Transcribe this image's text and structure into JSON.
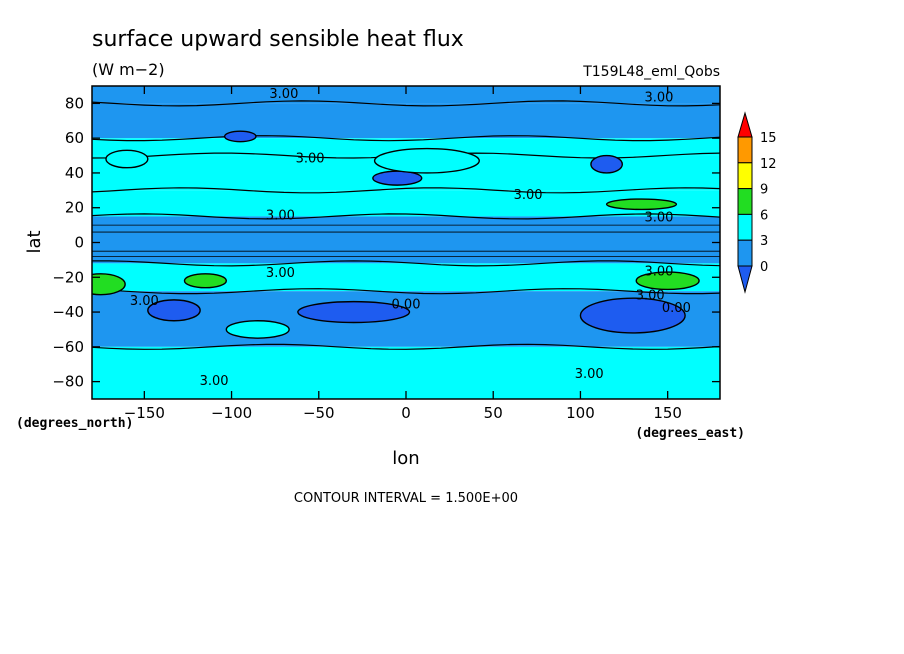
{
  "chart_data": {
    "type": "heatmap",
    "title": "surface upward sensible heat flux",
    "subtitle": "(W m−2)",
    "run_label": "T159L48_eml_Qobs",
    "xlabel": "lon",
    "ylabel": "lat",
    "x_units": "(degrees_east)",
    "y_units": "(degrees_north)",
    "xlim": [
      -180,
      180
    ],
    "ylim": [
      -90,
      90
    ],
    "x_ticks": [
      -150,
      -100,
      -50,
      0,
      50,
      100,
      150
    ],
    "x_tick_labels": [
      "−150",
      "−100",
      "−50",
      "0",
      "50",
      "100",
      "150"
    ],
    "y_ticks": [
      80,
      60,
      40,
      20,
      0,
      -20,
      -40,
      -60,
      -80
    ],
    "y_tick_labels": [
      "80",
      "60",
      "40",
      "20",
      "0",
      "−20",
      "−40",
      "−60",
      "−80"
    ],
    "footer": "CONTOUR INTERVAL = 1.500E+00",
    "colorbar": {
      "levels": [
        0,
        3,
        6,
        9,
        12,
        15
      ],
      "labels": [
        "0",
        "3",
        "6",
        "9",
        "12",
        "15"
      ],
      "colors": [
        "#1e5cf0",
        "#1e96f0",
        "#00ffff",
        "#22dd22",
        "#ffff00",
        "#ff9900",
        "#ff0000"
      ]
    },
    "bands": [
      {
        "lat_top": 90,
        "lat_bottom": 80,
        "level": "1.5-3"
      },
      {
        "lat_top": 80,
        "lat_bottom": 60,
        "level": "1.5-3"
      },
      {
        "lat_top": 60,
        "lat_bottom": 50,
        "level": "3-4.5"
      },
      {
        "lat_top": 50,
        "lat_bottom": 30,
        "level": "3-4.5"
      },
      {
        "lat_top": 30,
        "lat_bottom": 15,
        "level": "3-4.5"
      },
      {
        "lat_top": 15,
        "lat_bottom": -12,
        "level": "1.5-3"
      },
      {
        "lat_top": -12,
        "lat_bottom": -28,
        "level": "3-4.5"
      },
      {
        "lat_top": -28,
        "lat_bottom": -60,
        "level": "1.5-3"
      },
      {
        "lat_top": -60,
        "lat_bottom": -90,
        "level": "3-4.5"
      }
    ],
    "patches": [
      {
        "lon": -175,
        "lat": -24,
        "rx": 14,
        "ry": 6,
        "level": "6-9"
      },
      {
        "lon": -115,
        "lat": -22,
        "rx": 12,
        "ry": 4,
        "level": "6-9"
      },
      {
        "lon": 150,
        "lat": -22,
        "rx": 18,
        "ry": 5,
        "level": "6-9"
      },
      {
        "lon": 135,
        "lat": 22,
        "rx": 20,
        "ry": 3,
        "level": "6-9"
      },
      {
        "lon": -30,
        "lat": -40,
        "rx": 32,
        "ry": 6,
        "level": "0-1.5"
      },
      {
        "lon": -133,
        "lat": -39,
        "rx": 15,
        "ry": 6,
        "level": "0-1.5"
      },
      {
        "lon": 130,
        "lat": -42,
        "rx": 30,
        "ry": 10,
        "level": "0-1.5"
      },
      {
        "lon": 115,
        "lat": 45,
        "rx": 9,
        "ry": 5,
        "level": "0-1.5"
      },
      {
        "lon": -5,
        "lat": 37,
        "rx": 14,
        "ry": 4,
        "level": "0-1.5"
      },
      {
        "lon": -95,
        "lat": 61,
        "rx": 9,
        "ry": 3,
        "level": "0-1.5"
      },
      {
        "lon": -160,
        "lat": 48,
        "rx": 12,
        "ry": 5,
        "level": "3-4.5"
      },
      {
        "lon": -85,
        "lat": -50,
        "rx": 18,
        "ry": 5,
        "level": "3-4.5"
      },
      {
        "lon": 12,
        "lat": 47,
        "rx": 30,
        "ry": 7,
        "level": "3-4.5"
      }
    ],
    "contour_labels": [
      {
        "text": "3.00",
        "lon": -70,
        "lat": 86
      },
      {
        "text": "3.00",
        "lon": 145,
        "lat": 84
      },
      {
        "text": "3.00",
        "lon": -55,
        "lat": 49
      },
      {
        "text": "3.00",
        "lon": 70,
        "lat": 28
      },
      {
        "text": "3.00",
        "lon": -72,
        "lat": 16
      },
      {
        "text": "3.00",
        "lon": 145,
        "lat": 15
      },
      {
        "text": "3.00",
        "lon": -72,
        "lat": -17
      },
      {
        "text": "3.00",
        "lon": 145,
        "lat": -16
      },
      {
        "text": "3.00",
        "lon": -150,
        "lat": -33
      },
      {
        "text": "3.00",
        "lon": 140,
        "lat": -30
      },
      {
        "text": "0.00",
        "lon": 0,
        "lat": -35
      },
      {
        "text": "0.00",
        "lon": 155,
        "lat": -37
      },
      {
        "text": "3.00",
        "lon": -110,
        "lat": -79
      },
      {
        "text": "3.00",
        "lon": 105,
        "lat": -75
      }
    ]
  }
}
